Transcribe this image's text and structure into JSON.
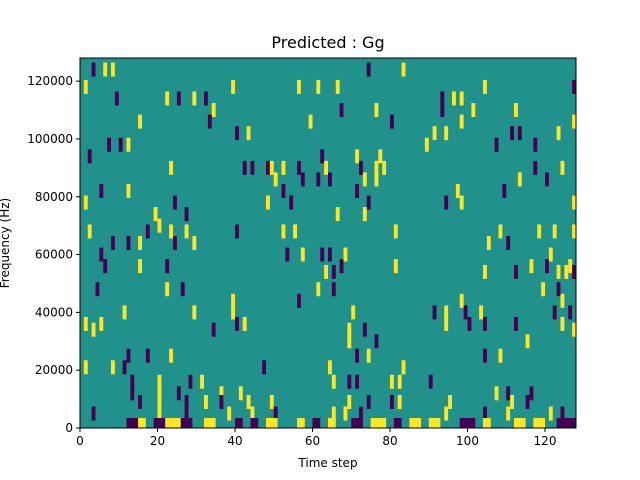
{
  "chart_data": {
    "type": "heatmap",
    "title": "Predicted : Gg",
    "xlabel": "Time step",
    "ylabel": "Frequency (Hz)",
    "xlim": [
      0,
      128
    ],
    "ylim": [
      0,
      128000
    ],
    "x_ticks": [
      0,
      20,
      40,
      60,
      80,
      100,
      120
    ],
    "y_ticks": [
      0,
      20000,
      40000,
      60000,
      80000,
      100000,
      120000
    ],
    "y_tick_labels": [
      "0",
      "20000",
      "40000",
      "60000",
      "80000",
      "100000",
      "120000"
    ],
    "value_levels": {
      "background": 0,
      "high": 1,
      "low": -1
    },
    "colors": {
      "background": "#21918c",
      "high": "#fde725",
      "low": "#440154",
      "axis": "#000000"
    },
    "cells": [
      {
        "t": 3,
        "f": 124000,
        "v": -1
      },
      {
        "t": 6,
        "f": 124000,
        "v": 1
      },
      {
        "t": 8,
        "f": 124000,
        "v": 1
      },
      {
        "t": 74,
        "f": 124000,
        "v": -1
      },
      {
        "t": 83,
        "f": 124000,
        "v": 1
      },
      {
        "t": 1,
        "f": 118000,
        "v": 1
      },
      {
        "t": 39,
        "f": 118000,
        "v": 1
      },
      {
        "t": 56,
        "f": 118000,
        "v": 1
      },
      {
        "t": 61,
        "f": 118000,
        "v": 1
      },
      {
        "t": 66,
        "f": 118000,
        "v": 1
      },
      {
        "t": 104,
        "f": 118000,
        "v": 1
      },
      {
        "t": 127,
        "f": 118000,
        "v": -1
      },
      {
        "t": 9,
        "f": 114000,
        "v": -1
      },
      {
        "t": 22,
        "f": 114000,
        "v": 1
      },
      {
        "t": 25,
        "f": 114000,
        "v": -1
      },
      {
        "t": 29,
        "f": 114000,
        "v": 1
      },
      {
        "t": 32,
        "f": 114000,
        "v": -1
      },
      {
        "t": 93,
        "f": 114000,
        "v": -1
      },
      {
        "t": 96,
        "f": 114000,
        "v": 1
      },
      {
        "t": 98,
        "f": 114000,
        "v": 1
      },
      {
        "t": 34,
        "f": 110000,
        "v": 1
      },
      {
        "t": 67,
        "f": 110000,
        "v": -1
      },
      {
        "t": 76,
        "f": 110000,
        "v": 1
      },
      {
        "t": 93,
        "f": 110000,
        "v": -1
      },
      {
        "t": 101,
        "f": 110000,
        "v": 1
      },
      {
        "t": 112,
        "f": 110000,
        "v": 1
      },
      {
        "t": 15,
        "f": 106000,
        "v": 1
      },
      {
        "t": 33,
        "f": 106000,
        "v": -1
      },
      {
        "t": 59,
        "f": 106000,
        "v": 1
      },
      {
        "t": 80,
        "f": 106000,
        "v": -1
      },
      {
        "t": 98,
        "f": 106000,
        "v": 1
      },
      {
        "t": 127,
        "f": 106000,
        "v": 1
      },
      {
        "t": 40,
        "f": 102000,
        "v": -1
      },
      {
        "t": 43,
        "f": 102000,
        "v": 1
      },
      {
        "t": 91,
        "f": 102000,
        "v": 1
      },
      {
        "t": 94,
        "f": 102000,
        "v": 1
      },
      {
        "t": 111,
        "f": 102000,
        "v": -1
      },
      {
        "t": 113,
        "f": 102000,
        "v": -1
      },
      {
        "t": 123,
        "f": 102000,
        "v": 1
      },
      {
        "t": 7,
        "f": 98000,
        "v": -1
      },
      {
        "t": 10,
        "f": 98000,
        "v": -1
      },
      {
        "t": 12,
        "f": 98000,
        "v": 1
      },
      {
        "t": 89,
        "f": 98000,
        "v": 1
      },
      {
        "t": 107,
        "f": 98000,
        "v": -1
      },
      {
        "t": 117,
        "f": 98000,
        "v": -1
      },
      {
        "t": 2,
        "f": 94000,
        "v": -1
      },
      {
        "t": 62,
        "f": 94000,
        "v": -1
      },
      {
        "t": 71,
        "f": 94000,
        "v": 1
      },
      {
        "t": 77,
        "f": 94000,
        "v": 1
      },
      {
        "t": 23,
        "f": 90000,
        "v": 1
      },
      {
        "t": 42,
        "f": 90000,
        "v": -1
      },
      {
        "t": 44,
        "f": 90000,
        "v": -1
      },
      {
        "t": 48,
        "f": 90000,
        "v": -1
      },
      {
        "t": 49,
        "f": 90000,
        "v": 1
      },
      {
        "t": 52,
        "f": 90000,
        "v": 1
      },
      {
        "t": 56,
        "f": 90000,
        "v": -1
      },
      {
        "t": 63,
        "f": 90000,
        "v": 1
      },
      {
        "t": 72,
        "f": 90000,
        "v": -1
      },
      {
        "t": 76,
        "f": 90000,
        "v": 1
      },
      {
        "t": 78,
        "f": 90000,
        "v": 1
      },
      {
        "t": 117,
        "f": 90000,
        "v": -1
      },
      {
        "t": 124,
        "f": 90000,
        "v": 1
      },
      {
        "t": 50,
        "f": 86000,
        "v": 1
      },
      {
        "t": 57,
        "f": 86000,
        "v": -1
      },
      {
        "t": 61,
        "f": 86000,
        "v": -1
      },
      {
        "t": 64,
        "f": 86000,
        "v": -1
      },
      {
        "t": 73,
        "f": 86000,
        "v": 1
      },
      {
        "t": 76,
        "f": 86000,
        "v": 1
      },
      {
        "t": 113,
        "f": 86000,
        "v": 1
      },
      {
        "t": 120,
        "f": 86000,
        "v": -1
      },
      {
        "t": 5,
        "f": 82000,
        "v": -1
      },
      {
        "t": 12,
        "f": 82000,
        "v": 1
      },
      {
        "t": 52,
        "f": 82000,
        "v": -1
      },
      {
        "t": 71,
        "f": 82000,
        "v": -1
      },
      {
        "t": 97,
        "f": 82000,
        "v": 1
      },
      {
        "t": 109,
        "f": 82000,
        "v": -1
      },
      {
        "t": 1,
        "f": 78000,
        "v": 1
      },
      {
        "t": 24,
        "f": 78000,
        "v": -1
      },
      {
        "t": 48,
        "f": 78000,
        "v": 1
      },
      {
        "t": 54,
        "f": 78000,
        "v": -1
      },
      {
        "t": 74,
        "f": 78000,
        "v": -1
      },
      {
        "t": 94,
        "f": 78000,
        "v": -1
      },
      {
        "t": 98,
        "f": 78000,
        "v": 1
      },
      {
        "t": 127,
        "f": 78000,
        "v": 1
      },
      {
        "t": 19,
        "f": 74000,
        "v": 1
      },
      {
        "t": 27,
        "f": 74000,
        "v": -1
      },
      {
        "t": 66,
        "f": 74000,
        "v": 1
      },
      {
        "t": 73,
        "f": 74000,
        "v": 1
      },
      {
        "t": 20,
        "f": 70000,
        "v": 1
      },
      {
        "t": 2,
        "f": 68000,
        "v": 1
      },
      {
        "t": 17,
        "f": 68000,
        "v": -1
      },
      {
        "t": 23,
        "f": 68000,
        "v": 1
      },
      {
        "t": 27,
        "f": 68000,
        "v": 1
      },
      {
        "t": 40,
        "f": 68000,
        "v": -1
      },
      {
        "t": 52,
        "f": 68000,
        "v": 1
      },
      {
        "t": 55,
        "f": 68000,
        "v": 1
      },
      {
        "t": 81,
        "f": 68000,
        "v": 1
      },
      {
        "t": 108,
        "f": 68000,
        "v": 1
      },
      {
        "t": 118,
        "f": 68000,
        "v": 1
      },
      {
        "t": 122,
        "f": 68000,
        "v": 1
      },
      {
        "t": 127,
        "f": 68000,
        "v": 1
      },
      {
        "t": 8,
        "f": 64000,
        "v": -1
      },
      {
        "t": 12,
        "f": 64000,
        "v": -1
      },
      {
        "t": 15,
        "f": 64000,
        "v": 1
      },
      {
        "t": 24,
        "f": 64000,
        "v": -1
      },
      {
        "t": 29,
        "f": 64000,
        "v": 1
      },
      {
        "t": 105,
        "f": 64000,
        "v": 1
      },
      {
        "t": 110,
        "f": 64000,
        "v": -1
      },
      {
        "t": 5,
        "f": 60000,
        "v": -1
      },
      {
        "t": 53,
        "f": 60000,
        "v": -1
      },
      {
        "t": 57,
        "f": 60000,
        "v": 1
      },
      {
        "t": 62,
        "f": 60000,
        "v": -1
      },
      {
        "t": 64,
        "f": 60000,
        "v": -1
      },
      {
        "t": 68,
        "f": 60000,
        "v": 1
      },
      {
        "t": 121,
        "f": 60000,
        "v": 1
      },
      {
        "t": 6,
        "f": 56000,
        "v": -1
      },
      {
        "t": 15,
        "f": 56000,
        "v": 1
      },
      {
        "t": 22,
        "f": 56000,
        "v": -1
      },
      {
        "t": 67,
        "f": 56000,
        "v": -1
      },
      {
        "t": 81,
        "f": 56000,
        "v": 1
      },
      {
        "t": 116,
        "f": 56000,
        "v": 1
      },
      {
        "t": 120,
        "f": 56000,
        "v": -1
      },
      {
        "t": 126,
        "f": 56000,
        "v": 1
      },
      {
        "t": 63,
        "f": 54000,
        "v": 1
      },
      {
        "t": 65,
        "f": 54000,
        "v": -1
      },
      {
        "t": 104,
        "f": 54000,
        "v": 1
      },
      {
        "t": 112,
        "f": 54000,
        "v": -1
      },
      {
        "t": 123,
        "f": 54000,
        "v": 1
      },
      {
        "t": 125,
        "f": 54000,
        "v": 1
      },
      {
        "t": 127,
        "f": 54000,
        "v": -1
      },
      {
        "t": 4,
        "f": 48000,
        "v": -1
      },
      {
        "t": 22,
        "f": 48000,
        "v": 1
      },
      {
        "t": 26,
        "f": 48000,
        "v": -1
      },
      {
        "t": 61,
        "f": 48000,
        "v": 1
      },
      {
        "t": 65,
        "f": 48000,
        "v": -1
      },
      {
        "t": 119,
        "f": 48000,
        "v": 1
      },
      {
        "t": 123,
        "f": 48000,
        "v": -1
      },
      {
        "t": 39,
        "f": 44000,
        "v": 1
      },
      {
        "t": 56,
        "f": 44000,
        "v": -1
      },
      {
        "t": 98,
        "f": 44000,
        "v": 1
      },
      {
        "t": 124,
        "f": 44000,
        "v": 1
      },
      {
        "t": 11,
        "f": 40000,
        "v": 1
      },
      {
        "t": 29,
        "f": 40000,
        "v": 1
      },
      {
        "t": 39,
        "f": 40000,
        "v": 1
      },
      {
        "t": 70,
        "f": 40000,
        "v": 1
      },
      {
        "t": 91,
        "f": 40000,
        "v": -1
      },
      {
        "t": 94,
        "f": 40000,
        "v": 1
      },
      {
        "t": 99,
        "f": 40000,
        "v": -1
      },
      {
        "t": 103,
        "f": 40000,
        "v": 1
      },
      {
        "t": 122,
        "f": 40000,
        "v": -1
      },
      {
        "t": 126,
        "f": 40000,
        "v": -1
      },
      {
        "t": 1,
        "f": 36000,
        "v": 1
      },
      {
        "t": 5,
        "f": 36000,
        "v": 1
      },
      {
        "t": 40,
        "f": 36000,
        "v": -1
      },
      {
        "t": 42,
        "f": 36000,
        "v": 1
      },
      {
        "t": 94,
        "f": 36000,
        "v": 1
      },
      {
        "t": 100,
        "f": 36000,
        "v": -1
      },
      {
        "t": 104,
        "f": 36000,
        "v": -1
      },
      {
        "t": 112,
        "f": 36000,
        "v": -1
      },
      {
        "t": 124,
        "f": 36000,
        "v": 1
      },
      {
        "t": 3,
        "f": 34000,
        "v": 1
      },
      {
        "t": 34,
        "f": 34000,
        "v": -1
      },
      {
        "t": 69,
        "f": 34000,
        "v": 1
      },
      {
        "t": 73,
        "f": 34000,
        "v": -1
      },
      {
        "t": 127,
        "f": 34000,
        "v": 1
      },
      {
        "t": 69,
        "f": 30000,
        "v": 1
      },
      {
        "t": 76,
        "f": 30000,
        "v": -1
      },
      {
        "t": 115,
        "f": 30000,
        "v": 1
      },
      {
        "t": 12,
        "f": 25000,
        "v": -1
      },
      {
        "t": 17,
        "f": 25000,
        "v": -1
      },
      {
        "t": 23,
        "f": 25000,
        "v": 1
      },
      {
        "t": 71,
        "f": 25000,
        "v": -1
      },
      {
        "t": 74,
        "f": 25000,
        "v": 1
      },
      {
        "t": 104,
        "f": 25000,
        "v": -1
      },
      {
        "t": 108,
        "f": 25000,
        "v": 1
      },
      {
        "t": 1,
        "f": 21000,
        "v": 1
      },
      {
        "t": 8,
        "f": 21000,
        "v": 1
      },
      {
        "t": 11,
        "f": 21000,
        "v": -1
      },
      {
        "t": 47,
        "f": 21000,
        "v": -1
      },
      {
        "t": 64,
        "f": 21000,
        "v": 1
      },
      {
        "t": 83,
        "f": 21000,
        "v": 1
      },
      {
        "t": 13,
        "f": 16000,
        "v": -1
      },
      {
        "t": 20,
        "f": 16000,
        "v": 1
      },
      {
        "t": 28,
        "f": 16000,
        "v": -1
      },
      {
        "t": 31,
        "f": 16000,
        "v": 1
      },
      {
        "t": 65,
        "f": 16000,
        "v": 1
      },
      {
        "t": 69,
        "f": 16000,
        "v": -1
      },
      {
        "t": 71,
        "f": 16000,
        "v": -1
      },
      {
        "t": 80,
        "f": 16000,
        "v": 1
      },
      {
        "t": 82,
        "f": 16000,
        "v": 1
      },
      {
        "t": 90,
        "f": 16000,
        "v": -1
      },
      {
        "t": 13,
        "f": 12000,
        "v": -1
      },
      {
        "t": 20,
        "f": 12000,
        "v": 1
      },
      {
        "t": 25,
        "f": 12000,
        "v": -1
      },
      {
        "t": 36,
        "f": 12000,
        "v": 1
      },
      {
        "t": 41,
        "f": 12000,
        "v": 1
      },
      {
        "t": 107,
        "f": 12000,
        "v": 1
      },
      {
        "t": 110,
        "f": 12000,
        "v": -1
      },
      {
        "t": 116,
        "f": 12000,
        "v": -1
      },
      {
        "t": 15,
        "f": 9000,
        "v": -1
      },
      {
        "t": 20,
        "f": 9000,
        "v": 1
      },
      {
        "t": 27,
        "f": 9000,
        "v": -1
      },
      {
        "t": 32,
        "f": 9000,
        "v": 1
      },
      {
        "t": 36,
        "f": 9000,
        "v": -1
      },
      {
        "t": 43,
        "f": 9000,
        "v": 1
      },
      {
        "t": 49,
        "f": 9000,
        "v": 1
      },
      {
        "t": 69,
        "f": 9000,
        "v": 1
      },
      {
        "t": 74,
        "f": 9000,
        "v": -1
      },
      {
        "t": 80,
        "f": 9000,
        "v": -1
      },
      {
        "t": 82,
        "f": 9000,
        "v": 1
      },
      {
        "t": 95,
        "f": 9000,
        "v": 1
      },
      {
        "t": 111,
        "f": 9000,
        "v": 1
      },
      {
        "t": 115,
        "f": 9000,
        "v": -1
      },
      {
        "t": 3,
        "f": 5000,
        "v": -1
      },
      {
        "t": 20,
        "f": 5000,
        "v": 1
      },
      {
        "t": 27,
        "f": 5000,
        "v": -1
      },
      {
        "t": 38,
        "f": 5000,
        "v": 1
      },
      {
        "t": 44,
        "f": 5000,
        "v": 1
      },
      {
        "t": 50,
        "f": 5000,
        "v": -1
      },
      {
        "t": 65,
        "f": 5000,
        "v": 1
      },
      {
        "t": 68,
        "f": 5000,
        "v": 1
      },
      {
        "t": 72,
        "f": 5000,
        "v": -1
      },
      {
        "t": 94,
        "f": 5000,
        "v": 1
      },
      {
        "t": 104,
        "f": 5000,
        "v": -1
      },
      {
        "t": 110,
        "f": 5000,
        "v": 1
      },
      {
        "t": 121,
        "f": 5000,
        "v": 1
      },
      {
        "t": 124,
        "f": 5000,
        "v": -1
      }
    ],
    "runs": [
      {
        "t0": 12,
        "t1": 15,
        "f": 2000,
        "v": -1
      },
      {
        "t0": 15,
        "t1": 17,
        "f": 2000,
        "v": 1
      },
      {
        "t0": 19,
        "t1": 22,
        "f": 2000,
        "v": -1
      },
      {
        "t0": 22,
        "t1": 26,
        "f": 2000,
        "v": 1
      },
      {
        "t0": 26,
        "t1": 29,
        "f": 2000,
        "v": -1
      },
      {
        "t0": 32,
        "t1": 35,
        "f": 2000,
        "v": 1
      },
      {
        "t0": 40,
        "t1": 42,
        "f": 2000,
        "v": -1
      },
      {
        "t0": 44,
        "t1": 46,
        "f": 2000,
        "v": -1
      },
      {
        "t0": 48,
        "t1": 51,
        "f": 2000,
        "v": 1
      },
      {
        "t0": 56,
        "t1": 58,
        "f": 2000,
        "v": 1
      },
      {
        "t0": 60,
        "t1": 62,
        "f": 2000,
        "v": -1
      },
      {
        "t0": 64,
        "t1": 66,
        "f": 2000,
        "v": 1
      },
      {
        "t0": 70,
        "t1": 73,
        "f": 2000,
        "v": -1
      },
      {
        "t0": 75,
        "t1": 79,
        "f": 2000,
        "v": 1
      },
      {
        "t0": 81,
        "t1": 83,
        "f": 2000,
        "v": -1
      },
      {
        "t0": 85,
        "t1": 88,
        "f": 2000,
        "v": 1
      },
      {
        "t0": 90,
        "t1": 93,
        "f": 2000,
        "v": 1
      },
      {
        "t0": 98,
        "t1": 102,
        "f": 2000,
        "v": -1
      },
      {
        "t0": 104,
        "t1": 106,
        "f": 2000,
        "v": 1
      },
      {
        "t0": 112,
        "t1": 115,
        "f": 2000,
        "v": 1
      },
      {
        "t0": 117,
        "t1": 120,
        "f": 2000,
        "v": 1
      },
      {
        "t0": 123,
        "t1": 128,
        "f": 2000,
        "v": -1
      }
    ]
  }
}
